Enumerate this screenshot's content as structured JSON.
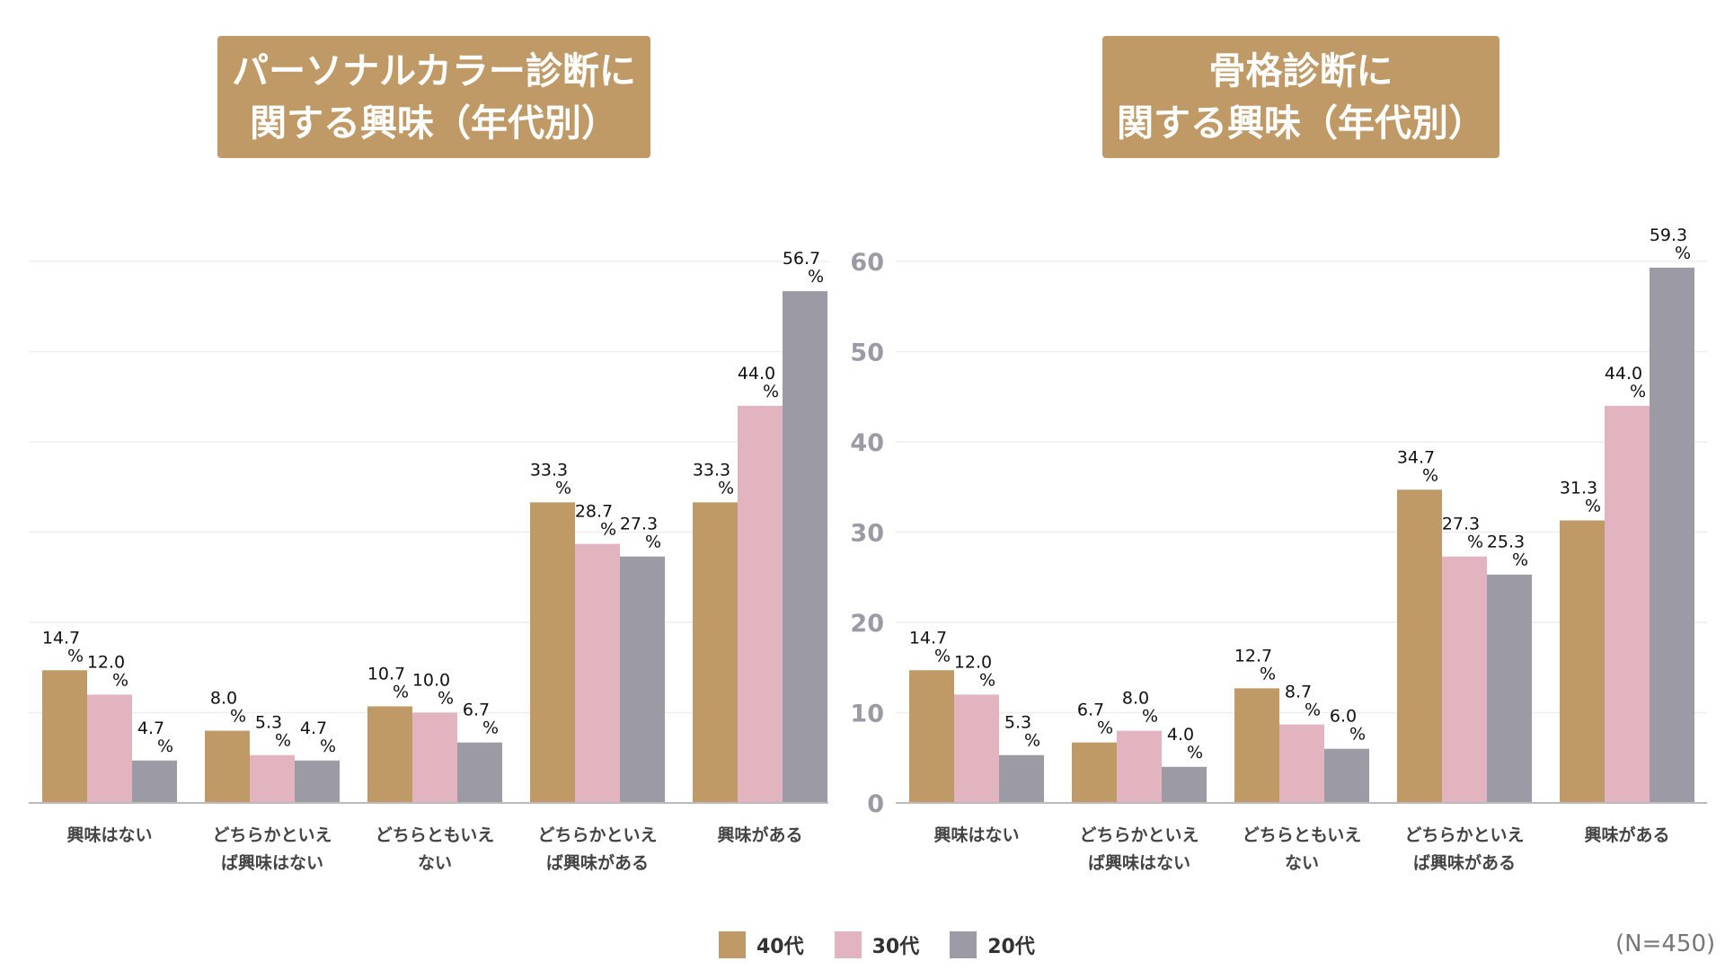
{
  "colors": {
    "title_bg": "#bf9a66",
    "series": [
      "#bf9a66",
      "#e2b4bf",
      "#9c9ba5"
    ],
    "axis_text": "#9c9ba5",
    "grid": "#eeeeee"
  },
  "legend": [
    {
      "label": "40代",
      "color": "#bf9a66"
    },
    {
      "label": "30代",
      "color": "#e2b4bf"
    },
    {
      "label": "20代",
      "color": "#9c9ba5"
    }
  ],
  "sample_note": "(N=450)",
  "chart_data": [
    {
      "type": "bar",
      "title_lines": [
        "パーソナルカラー診断に",
        "関する興味（年代別）"
      ],
      "categories": [
        [
          "興味はない"
        ],
        [
          "どちらかといえ",
          "ば興味はない"
        ],
        [
          "どちらともいえ",
          "ない"
        ],
        [
          "どちらかといえ",
          "ば興味がある"
        ],
        [
          "興味がある"
        ]
      ],
      "series": [
        {
          "name": "40代",
          "values": [
            14.7,
            8.0,
            10.7,
            33.3,
            33.3
          ]
        },
        {
          "name": "30代",
          "values": [
            12.0,
            5.3,
            10.0,
            28.7,
            44.0
          ]
        },
        {
          "name": "20代",
          "values": [
            4.7,
            4.7,
            6.7,
            27.3,
            56.7
          ]
        }
      ],
      "value_suffix": "%",
      "ylim": [
        0,
        60
      ],
      "yticks": [],
      "grid": true
    },
    {
      "type": "bar",
      "title_lines": [
        "骨格診断に",
        "関する興味（年代別）"
      ],
      "categories": [
        [
          "興味はない"
        ],
        [
          "どちらかといえ",
          "ば興味はない"
        ],
        [
          "どちらともいえ",
          "ない"
        ],
        [
          "どちらかといえ",
          "ば興味がある"
        ],
        [
          "興味がある"
        ]
      ],
      "series": [
        {
          "name": "40代",
          "values": [
            14.7,
            6.7,
            12.7,
            34.7,
            31.3
          ]
        },
        {
          "name": "30代",
          "values": [
            12.0,
            8.0,
            8.7,
            27.3,
            44.0
          ]
        },
        {
          "name": "20代",
          "values": [
            5.3,
            4.0,
            6.0,
            25.3,
            59.3
          ]
        }
      ],
      "value_suffix": "%",
      "ylim": [
        0,
        60
      ],
      "yticks": [
        0,
        10,
        20,
        30,
        40,
        50,
        60
      ],
      "grid": true
    }
  ]
}
